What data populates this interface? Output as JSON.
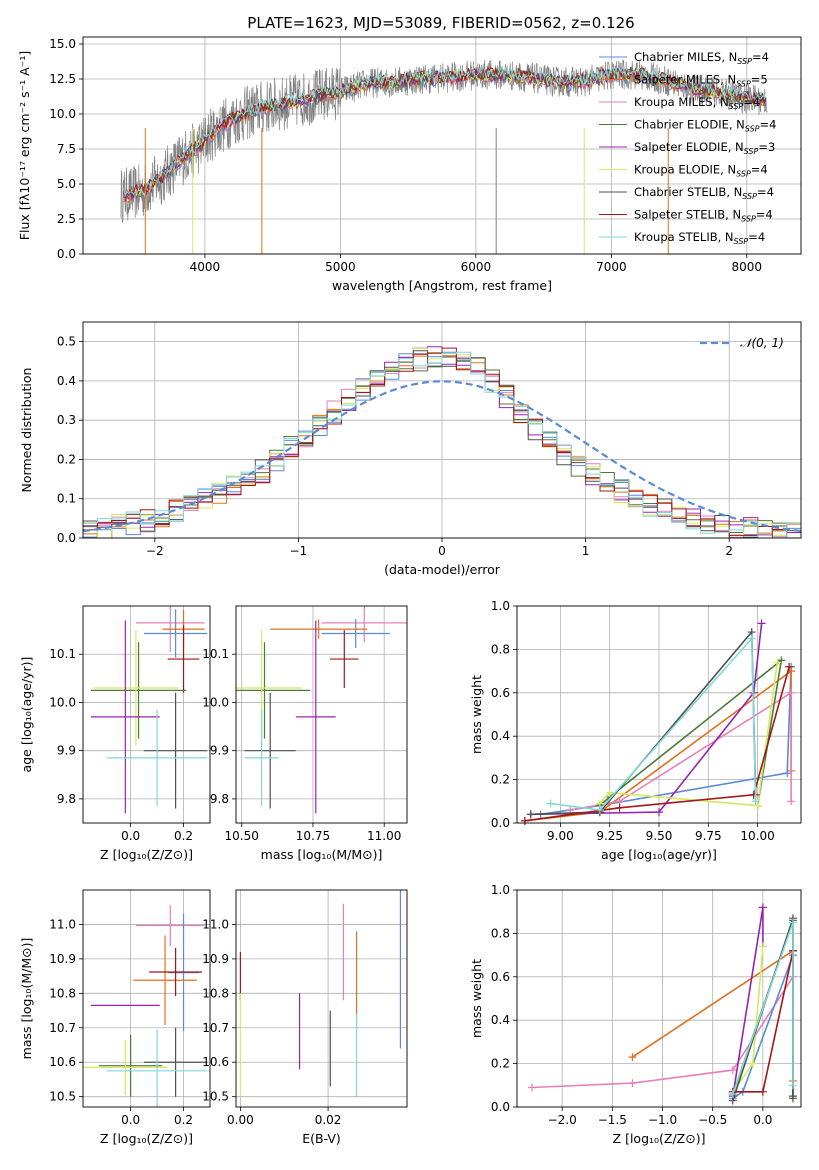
{
  "title": "PLATE=1623, MJD=53089, FIBERID=0562, z=0.126",
  "colors": {
    "Chabrier MILES": "#5b8bd6",
    "Salpeter MILES": "#e0701a",
    "Kroupa MILES": "#e680b8",
    "Chabrier ELODIE": "#4b7a3a",
    "Salpeter ELODIE": "#9a22b0",
    "Kroupa ELODIE": "#d8e860",
    "Chabrier STELIB": "#505050",
    "Salpeter STELIB": "#a01818",
    "Kroupa STELIB": "#80d8d8",
    "data": "#808080",
    "normal": "#5b8bd6"
  },
  "chart_data": [
    {
      "type": "line",
      "id": "spectrum",
      "title": "PLATE=1623, MJD=53089, FIBERID=0562, z=0.126",
      "xlabel": "wavelength [Angstrom, rest frame]",
      "ylabel": "Flux [fλ10⁻¹⁷ erg cm⁻² s⁻¹ A⁻¹]",
      "xlim": [
        3100,
        8400
      ],
      "ylim": [
        0,
        15.5
      ],
      "xticks": [
        "4000",
        "5000",
        "6000",
        "7000",
        "8000"
      ],
      "yticks": [
        "0.0",
        "2.5",
        "5.0",
        "7.5",
        "10.0",
        "12.5",
        "15.0"
      ],
      "legend_position": "top-right",
      "legend": [
        "Chabrier MILES, N_SSP=4",
        "Salpeter MILES, N_SSP=5",
        "Kroupa MILES, N_SSP=4",
        "Chabrier ELODIE, N_SSP=4",
        "Salpeter ELODIE, N_SSP=3",
        "Kroupa ELODIE, N_SSP=4",
        "Chabrier STELIB, N_SSP=4",
        "Salpeter STELIB, N_SSP=4",
        "Kroupa STELIB, N_SSP=4"
      ],
      "continuum_x": [
        3400,
        3550,
        3700,
        3850,
        3950,
        4050,
        4200,
        4400,
        4600,
        4800,
        5000,
        5200,
        5400,
        5600,
        5800,
        6000,
        6200,
        6400,
        6600,
        6800,
        7000,
        7200,
        7400,
        7600,
        7800,
        8000,
        8100
      ],
      "continuum_y": [
        4.2,
        4.5,
        5.6,
        7.0,
        7.6,
        8.6,
        9.6,
        10.4,
        10.8,
        11.2,
        11.6,
        12.2,
        12.3,
        12.5,
        12.6,
        12.8,
        12.8,
        12.6,
        12.3,
        12.3,
        12.8,
        12.8,
        12.4,
        11.8,
        11.5,
        11.1,
        11.0
      ]
    },
    {
      "type": "bar",
      "id": "residuals",
      "xlabel": "(data-model)/error",
      "ylabel": "Normed distribution",
      "xlim": [
        -2.5,
        2.5
      ],
      "ylim": [
        0,
        0.55
      ],
      "xticks": [
        "−2",
        "−1",
        "0",
        "1",
        "2"
      ],
      "yticks": [
        "0.0",
        "0.1",
        "0.2",
        "0.3",
        "0.4",
        "0.5"
      ],
      "legend": [
        "𝒩(0, 1)"
      ],
      "legend_position": "top-right",
      "bin_width": 0.1,
      "x_start": -2.5,
      "values": [
        0.02,
        0.025,
        0.03,
        0.037,
        0.045,
        0.055,
        0.067,
        0.08,
        0.095,
        0.11,
        0.13,
        0.15,
        0.17,
        0.2,
        0.23,
        0.26,
        0.29,
        0.32,
        0.35,
        0.38,
        0.41,
        0.43,
        0.445,
        0.455,
        0.46,
        0.46,
        0.45,
        0.43,
        0.4,
        0.36,
        0.32,
        0.28,
        0.24,
        0.21,
        0.18,
        0.16,
        0.14,
        0.12,
        0.1,
        0.085,
        0.07,
        0.06,
        0.05,
        0.04,
        0.033,
        0.027,
        0.022,
        0.018,
        0.015,
        0.012
      ]
    },
    {
      "type": "scatter",
      "id": "age-vs-Z",
      "xlabel": "Z [log₁₀(Z/Z⊙)]",
      "ylabel": "age  [log₁₀(age/yr)]",
      "xlim": [
        -0.18,
        0.3
      ],
      "ylim": [
        9.75,
        10.2
      ],
      "xticks": [
        "0.0",
        "0.2"
      ],
      "yticks": [
        "9.8",
        "9.9",
        "10.0",
        "10.1"
      ],
      "points": [
        {
          "series": "Kroupa MILES",
          "x": 0.15,
          "y": 10.165,
          "xerr": 0.13,
          "yerr": 0.06
        },
        {
          "series": "Chabrier MILES",
          "x": 0.17,
          "y": 10.143,
          "xerr": 0.12,
          "yerr": 0.05
        },
        {
          "series": "Salpeter MILES",
          "x": 0.2,
          "y": 10.152,
          "xerr": 0.08,
          "yerr": 0.04
        },
        {
          "series": "Salpeter STELIB",
          "x": 0.2,
          "y": 10.09,
          "xerr": 0.06,
          "yerr": 0.07
        },
        {
          "series": "Chabrier ELODIE",
          "x": 0.03,
          "y": 10.025,
          "xerr": 0.18,
          "yerr": 0.1
        },
        {
          "series": "Kroupa ELODIE",
          "x": 0.02,
          "y": 10.03,
          "xerr": 0.16,
          "yerr": 0.12
        },
        {
          "series": "Salpeter ELODIE",
          "x": -0.02,
          "y": 9.97,
          "xerr": 0.13,
          "yerr": 0.2
        },
        {
          "series": "Chabrier STELIB",
          "x": 0.17,
          "y": 9.9,
          "xerr": 0.12,
          "yerr": 0.12
        },
        {
          "series": "Kroupa STELIB",
          "x": 0.1,
          "y": 9.885,
          "xerr": 0.19,
          "yerr": 0.1
        }
      ]
    },
    {
      "type": "scatter",
      "id": "age-vs-mass",
      "xlabel": "mass [log₁₀(M/M⊙)]",
      "ylabel": "",
      "xlim": [
        10.48,
        11.08
      ],
      "ylim": [
        9.75,
        10.2
      ],
      "xticks": [
        "10.50",
        "10.75",
        "11.00"
      ],
      "yticks": [
        "9.8",
        "9.9",
        "10.0",
        "10.1"
      ],
      "points": [
        {
          "series": "Kroupa MILES",
          "x": 10.93,
          "y": 10.165,
          "xerr": 0.15,
          "yerr": 0.04
        },
        {
          "series": "Chabrier MILES",
          "x": 10.9,
          "y": 10.143,
          "xerr": 0.12,
          "yerr": 0.03
        },
        {
          "series": "Salpeter MILES",
          "x": 10.77,
          "y": 10.152,
          "xerr": 0.17,
          "yerr": 0.02
        },
        {
          "series": "Salpeter STELIB",
          "x": 10.86,
          "y": 10.09,
          "xerr": 0.05,
          "yerr": 0.06
        },
        {
          "series": "Chabrier ELODIE",
          "x": 10.58,
          "y": 10.025,
          "xerr": 0.16,
          "yerr": 0.1
        },
        {
          "series": "Kroupa ELODIE",
          "x": 10.57,
          "y": 10.03,
          "xerr": 0.14,
          "yerr": 0.12
        },
        {
          "series": "Salpeter ELODIE",
          "x": 10.76,
          "y": 9.97,
          "xerr": 0.07,
          "yerr": 0.2
        },
        {
          "series": "Chabrier STELIB",
          "x": 10.6,
          "y": 9.9,
          "xerr": 0.09,
          "yerr": 0.12
        },
        {
          "series": "Kroupa STELIB",
          "x": 10.57,
          "y": 9.885,
          "xerr": 0.06,
          "yerr": 0.1
        }
      ]
    },
    {
      "type": "line",
      "id": "weight-vs-age",
      "xlabel": "age  [log₁₀(age/yr)]",
      "ylabel": "mass weight",
      "xlim": [
        8.78,
        10.22
      ],
      "ylim": [
        0,
        1
      ],
      "xticks": [
        "9.00",
        "9.25",
        "9.50",
        "9.75",
        "10.00"
      ],
      "yticks": [
        "0.0",
        "0.2",
        "0.4",
        "0.6",
        "0.8",
        "1.0"
      ],
      "series": [
        {
          "name": "Chabrier MILES",
          "x": [
            8.9,
            9.2,
            10.15,
            10.17
          ],
          "y": [
            0.04,
            0.08,
            0.23,
            0.72
          ]
        },
        {
          "name": "Salpeter MILES",
          "x": [
            8.82,
            9.2,
            10.17,
            10.17
          ],
          "y": [
            0.01,
            0.05,
            0.7,
            0.24
          ]
        },
        {
          "name": "Kroupa MILES",
          "x": [
            9.05,
            9.3,
            10.17,
            10.17
          ],
          "y": [
            0.06,
            0.1,
            0.6,
            0.1
          ]
        },
        {
          "name": "Chabrier ELODIE",
          "x": [
            9.2,
            9.25,
            10.12,
            10.0
          ],
          "y": [
            0.08,
            0.12,
            0.75,
            0.08
          ]
        },
        {
          "name": "Salpeter ELODIE",
          "x": [
            8.85,
            9.5,
            9.98,
            10.02
          ],
          "y": [
            0.04,
            0.05,
            0.6,
            0.92
          ]
        },
        {
          "name": "Kroupa ELODIE",
          "x": [
            9.2,
            9.25,
            10.0,
            10.1
          ],
          "y": [
            0.09,
            0.14,
            0.08,
            0.74
          ]
        },
        {
          "name": "Chabrier STELIB",
          "x": [
            8.85,
            9.2,
            9.97,
            9.99
          ],
          "y": [
            0.04,
            0.05,
            0.88,
            0.13
          ]
        },
        {
          "name": "Salpeter STELIB",
          "x": [
            8.82,
            9.3,
            9.98,
            10.16
          ],
          "y": [
            0.01,
            0.07,
            0.13,
            0.72
          ]
        },
        {
          "name": "Kroupa STELIB",
          "x": [
            8.95,
            9.2,
            9.97,
            9.99
          ],
          "y": [
            0.09,
            0.06,
            0.85,
            0.1
          ]
        }
      ]
    },
    {
      "type": "scatter",
      "id": "mass-vs-Z",
      "xlabel": "Z [log₁₀(Z/Z⊙)]",
      "ylabel": "mass [log₁₀(M/M⊙)]",
      "xlim": [
        -0.18,
        0.3
      ],
      "ylim": [
        10.47,
        11.1
      ],
      "xticks": [
        "0.0",
        "0.2"
      ],
      "yticks": [
        "10.5",
        "10.6",
        "10.7",
        "10.8",
        "10.9",
        "11.0"
      ],
      "points": [
        {
          "series": "Kroupa MILES",
          "x": 0.15,
          "y": 10.997,
          "xerr": 0.13,
          "yerr": 0.06
        },
        {
          "series": "Chabrier MILES",
          "x": 0.2,
          "y": 10.86,
          "xerr": 0.06,
          "yerr": 0.17
        },
        {
          "series": "Salpeter MILES",
          "x": 0.13,
          "y": 10.838,
          "xerr": 0.12,
          "yerr": 0.13
        },
        {
          "series": "Salpeter STELIB",
          "x": 0.17,
          "y": 10.862,
          "xerr": 0.1,
          "yerr": 0.07
        },
        {
          "series": "Chabrier ELODIE",
          "x": 0.0,
          "y": 10.59,
          "xerr": 0.12,
          "yerr": 0.09
        },
        {
          "series": "Kroupa ELODIE",
          "x": -0.02,
          "y": 10.585,
          "xerr": 0.16,
          "yerr": 0.08
        },
        {
          "series": "Salpeter ELODIE",
          "x": -0.02,
          "y": 10.765,
          "xerr": 0.13,
          "yerr": 0.0
        },
        {
          "series": "Chabrier STELIB",
          "x": 0.17,
          "y": 10.6,
          "xerr": 0.12,
          "yerr": 0.1
        },
        {
          "series": "Kroupa STELIB",
          "x": 0.1,
          "y": 10.575,
          "xerr": 0.19,
          "yerr": 0.12
        }
      ]
    },
    {
      "type": "scatter",
      "id": "mass-vs-ebv",
      "xlabel": "E(B-V)",
      "ylabel": "",
      "xlim": [
        -0.001,
        0.038
      ],
      "ylim": [
        10.47,
        11.1
      ],
      "xticks": [
        "0.00",
        "0.02"
      ],
      "yticks": [
        "10.5",
        "10.6",
        "10.7",
        "10.8",
        "10.9",
        "11.0"
      ],
      "points": [
        {
          "series": "Salpeter STELIB",
          "x": 0.0,
          "y": 10.85,
          "yerr": 0.07
        },
        {
          "series": "Kroupa ELODIE",
          "x": 0.0,
          "y": 10.65,
          "yerr": 0.15
        },
        {
          "series": "Salpeter ELODIE",
          "x": 0.0135,
          "y": 10.69,
          "yerr": 0.11
        },
        {
          "series": "Chabrier STELIB",
          "x": 0.0205,
          "y": 10.64,
          "yerr": 0.11
        },
        {
          "series": "Kroupa MILES",
          "x": 0.0235,
          "y": 10.92,
          "yerr": 0.14
        },
        {
          "series": "Salpeter MILES",
          "x": 0.0265,
          "y": 10.84,
          "yerr": 0.14
        },
        {
          "series": "Kroupa STELIB",
          "x": 0.0265,
          "y": 10.62,
          "yerr": 0.12
        },
        {
          "series": "Chabrier MILES",
          "x": 0.0365,
          "y": 10.88,
          "yerr": 0.24
        }
      ]
    },
    {
      "type": "line",
      "id": "weight-vs-Z",
      "xlabel": "Z [log₁₀(Z/Z⊙)]",
      "ylabel": "mass weight",
      "xlim": [
        -2.45,
        0.38
      ],
      "ylim": [
        0,
        1
      ],
      "xticks": [
        "−2.0",
        "−1.5",
        "−1.0",
        "−0.5",
        "0.0"
      ],
      "yticks": [
        "0.0",
        "0.2",
        "0.4",
        "0.6",
        "0.8",
        "1.0"
      ],
      "series": [
        {
          "name": "Kroupa MILES",
          "x": [
            -2.3,
            -1.3,
            -0.3,
            0.3
          ],
          "y": [
            0.09,
            0.11,
            0.17,
            0.6
          ]
        },
        {
          "name": "Salpeter MILES",
          "x": [
            -1.3,
            0.3,
            0.3
          ],
          "y": [
            0.23,
            0.72,
            0.12
          ]
        },
        {
          "name": "Chabrier MILES",
          "x": [
            -0.3,
            -0.2,
            0.3,
            0.3
          ],
          "y": [
            0.04,
            0.07,
            0.7,
            0.04
          ]
        },
        {
          "name": "Chabrier ELODIE",
          "x": [
            -0.3,
            0.3,
            0.3
          ],
          "y": [
            0.06,
            0.86,
            0.04
          ]
        },
        {
          "name": "Salpeter ELODIE",
          "x": [
            -0.3,
            0.0,
            0.0
          ],
          "y": [
            0.05,
            0.92,
            0.74
          ]
        },
        {
          "name": "Kroupa ELODIE",
          "x": [
            -0.3,
            -0.1,
            0.0
          ],
          "y": [
            0.07,
            0.2,
            0.74
          ]
        },
        {
          "name": "Chabrier STELIB",
          "x": [
            -0.3,
            0.3,
            0.3
          ],
          "y": [
            0.03,
            0.87,
            0.05
          ]
        },
        {
          "name": "Salpeter STELIB",
          "x": [
            -0.3,
            0.0,
            0.3
          ],
          "y": [
            0.07,
            0.07,
            0.72
          ]
        },
        {
          "name": "Kroupa STELIB",
          "x": [
            -0.3,
            0.3,
            0.3
          ],
          "y": [
            0.06,
            0.85,
            0.1
          ]
        }
      ]
    }
  ]
}
